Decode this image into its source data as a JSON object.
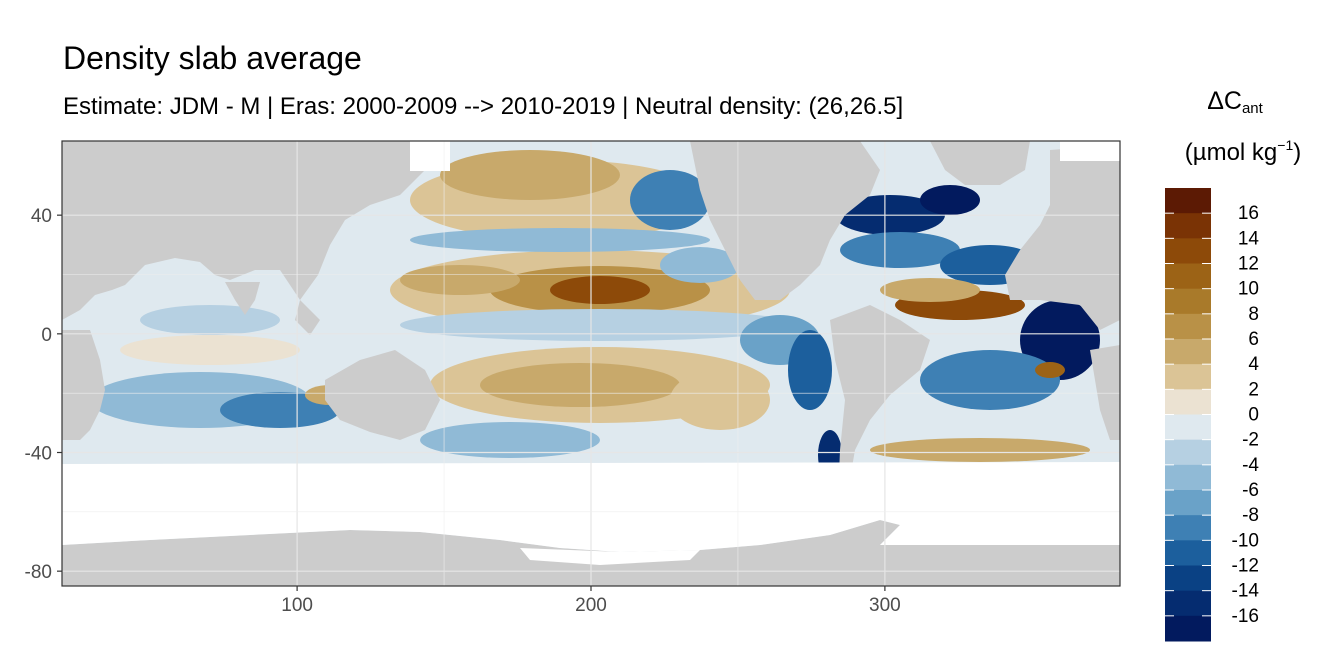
{
  "chart_data": {
    "type": "heatmap",
    "title": "Density slab average",
    "subtitle": "Estimate: JDM - M | Eras: 2000-2009 --> 2010-2019 | Neutral density: (26,26.5]",
    "legend": {
      "title_symbol": "ΔC",
      "title_subscript": "ant",
      "unit_main": "(µmol kg",
      "unit_superscript": "−1",
      "unit_close": ")",
      "placement": "right",
      "breaks": [
        16,
        14,
        12,
        10,
        8,
        6,
        4,
        2,
        0,
        -2,
        -4,
        -6,
        -8,
        -10,
        -12,
        -14,
        -16
      ],
      "colors_top_to_bottom": [
        "#5c1a04",
        "#7a3305",
        "#8d4a09",
        "#9c6316",
        "#a97a2a",
        "#b99147",
        "#c8a96b",
        "#dbc496",
        "#ebe2d2",
        "#dfe9ef",
        "#b6d0e2",
        "#90bad6",
        "#6aa2c8",
        "#3e80b4",
        "#1c5f9d",
        "#0a4184",
        "#052c70",
        "#021a5e"
      ]
    },
    "x_axis": {
      "range": [
        20,
        380
      ],
      "ticks": [
        100,
        200,
        300
      ]
    },
    "y_axis": {
      "range": [
        -85,
        65
      ],
      "ticks": [
        40,
        0,
        -40,
        -80
      ]
    },
    "grid": true,
    "land_color": "#cccccc",
    "no_data_color": "#ffffff"
  }
}
